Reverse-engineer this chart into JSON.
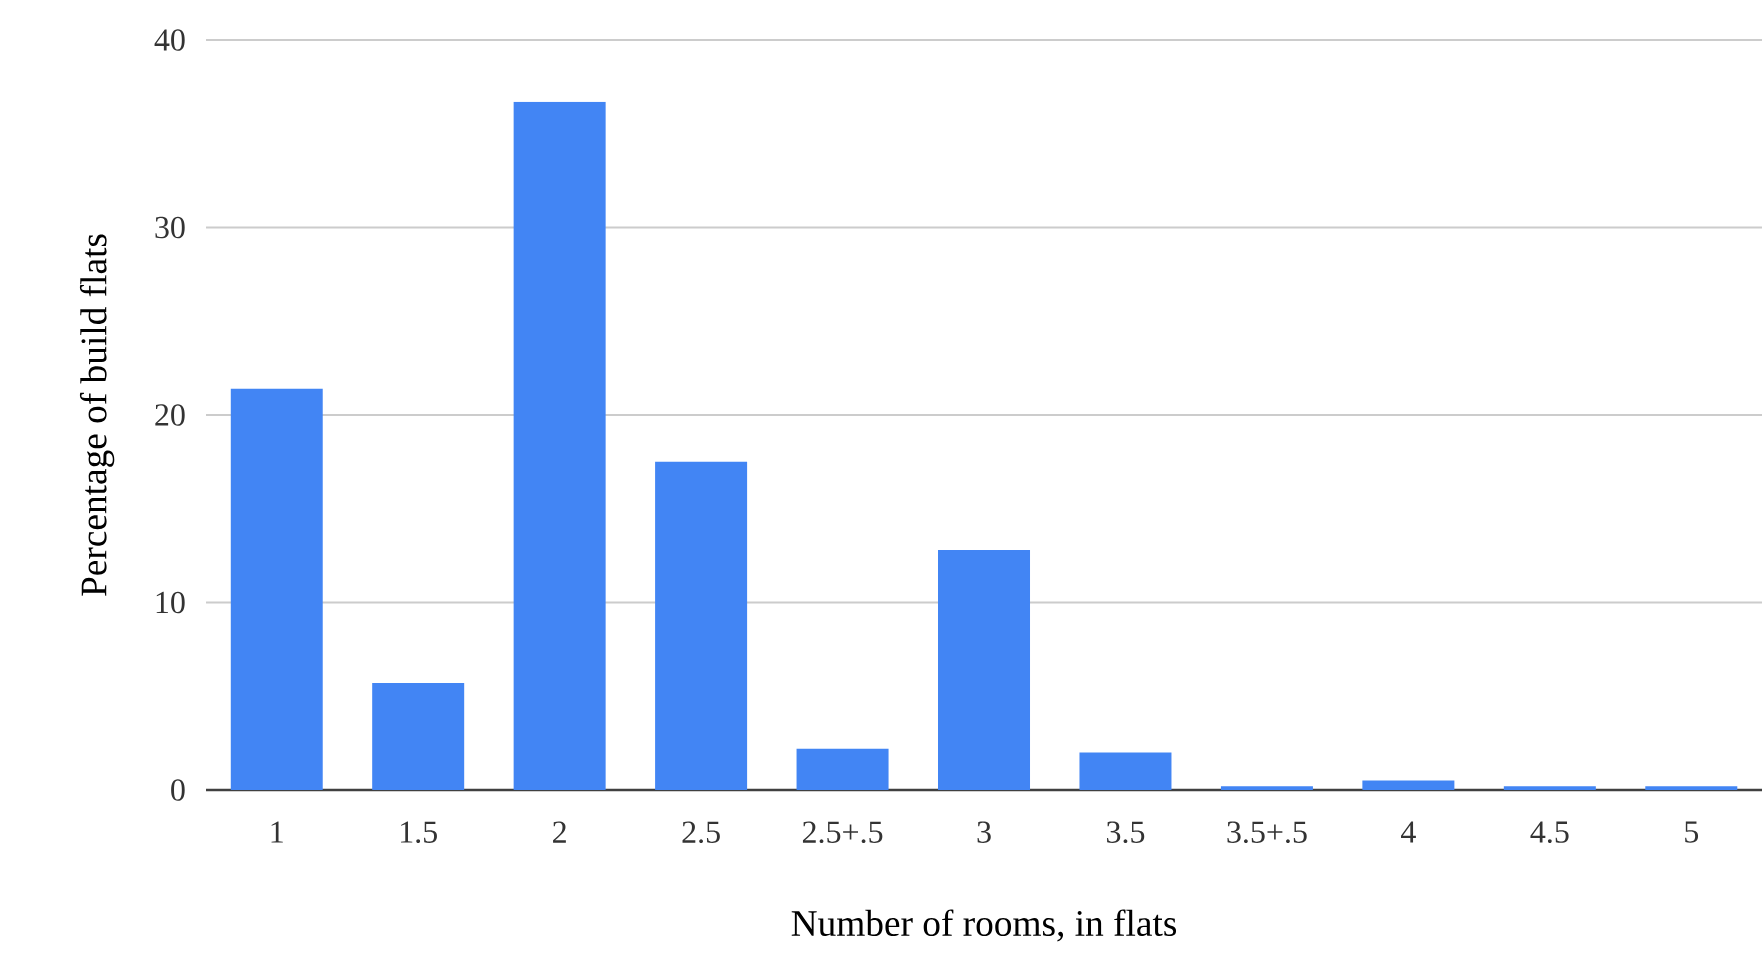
{
  "chart_data": {
    "type": "bar",
    "xlabel": "Number of rooms, in flats",
    "ylabel": "Percentage of build flats",
    "categories": [
      "1",
      "1.5",
      "2",
      "2.5",
      "2.5+.5",
      "3",
      "3.5",
      "3.5+.5",
      "4",
      "4.5",
      "5"
    ],
    "values": [
      21.4,
      5.7,
      36.7,
      17.5,
      2.2,
      12.8,
      2.0,
      0.2,
      0.5,
      0.2,
      0.2
    ],
    "color": "#4285f4",
    "ylim": [
      0,
      40
    ],
    "yticks": [
      0,
      10,
      20,
      30,
      40
    ],
    "grid": "y"
  }
}
